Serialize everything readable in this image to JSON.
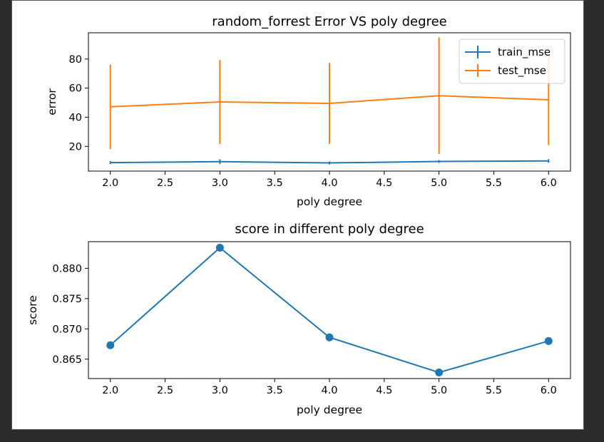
{
  "chart_data": [
    {
      "type": "line",
      "title": "random_forrest Error VS poly degree",
      "xlabel": "poly degree",
      "ylabel": "error",
      "x": [
        2.0,
        3.0,
        4.0,
        5.0,
        6.0
      ],
      "xlim": [
        1.8,
        6.2
      ],
      "ylim": [
        3,
        98
      ],
      "xticks": [
        2.0,
        2.5,
        3.0,
        3.5,
        4.0,
        4.5,
        5.0,
        5.5,
        6.0
      ],
      "xtick_labels": [
        "2.0",
        "2.5",
        "3.0",
        "3.5",
        "4.0",
        "4.5",
        "5.0",
        "5.5",
        "6.0"
      ],
      "yticks": [
        20,
        40,
        60,
        80
      ],
      "ytick_labels": [
        "20",
        "40",
        "60",
        "80"
      ],
      "grid": false,
      "legend": "upper-right",
      "series": [
        {
          "name": "train_mse",
          "color": "#1f77b4",
          "values": [
            8.8,
            9.5,
            8.6,
            9.6,
            10.0
          ],
          "err": [
            1.0,
            1.6,
            1.0,
            1.0,
            1.2
          ]
        },
        {
          "name": "test_mse",
          "color": "#ff7f0e",
          "values": [
            47.2,
            50.5,
            49.5,
            54.8,
            52.0
          ],
          "err": [
            29.0,
            28.8,
            27.8,
            40.0,
            31.2
          ]
        }
      ]
    },
    {
      "type": "line",
      "title": "score in different poly degree",
      "xlabel": "poly degree",
      "ylabel": "score",
      "x": [
        2.0,
        3.0,
        4.0,
        5.0,
        6.0
      ],
      "xlim": [
        1.8,
        6.2
      ],
      "ylim": [
        0.8618,
        0.8844
      ],
      "xticks": [
        2.0,
        2.5,
        3.0,
        3.5,
        4.0,
        4.5,
        5.0,
        5.5,
        6.0
      ],
      "xtick_labels": [
        "2.0",
        "2.5",
        "3.0",
        "3.5",
        "4.0",
        "4.5",
        "5.0",
        "5.5",
        "6.0"
      ],
      "yticks": [
        0.865,
        0.87,
        0.875,
        0.88
      ],
      "ytick_labels": [
        "0.865",
        "0.870",
        "0.875",
        "0.880"
      ],
      "grid": false,
      "marker": "circle",
      "series": [
        {
          "color": "#1f77b4",
          "values": [
            0.8673,
            0.8834,
            0.8686,
            0.8628,
            0.868
          ]
        }
      ]
    }
  ]
}
